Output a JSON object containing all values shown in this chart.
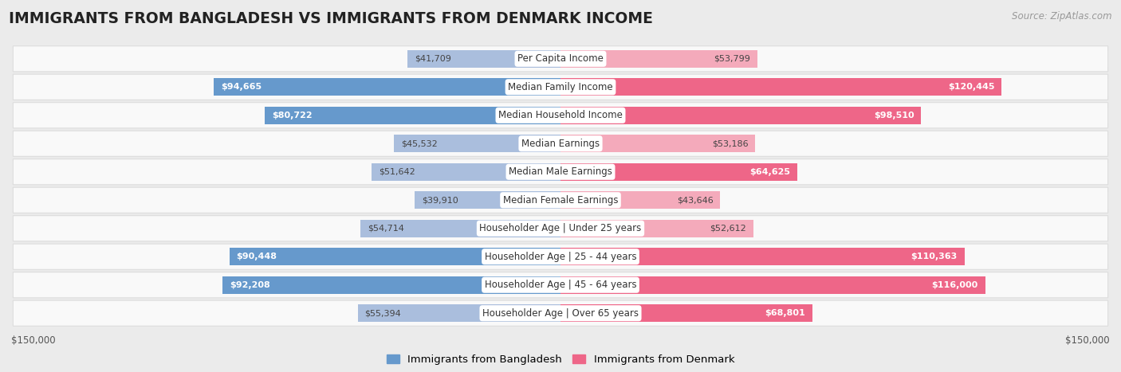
{
  "title": "IMMIGRANTS FROM BANGLADESH VS IMMIGRANTS FROM DENMARK INCOME",
  "source": "Source: ZipAtlas.com",
  "categories": [
    "Per Capita Income",
    "Median Family Income",
    "Median Household Income",
    "Median Earnings",
    "Median Male Earnings",
    "Median Female Earnings",
    "Householder Age | Under 25 years",
    "Householder Age | 25 - 44 years",
    "Householder Age | 45 - 64 years",
    "Householder Age | Over 65 years"
  ],
  "bangladesh_values": [
    41709,
    94665,
    80722,
    45532,
    51642,
    39910,
    54714,
    90448,
    92208,
    55394
  ],
  "denmark_values": [
    53799,
    120445,
    98510,
    53186,
    64625,
    43646,
    52612,
    110363,
    116000,
    68801
  ],
  "bangladesh_color_dark": "#6699CC",
  "bangladesh_color_light": "#AABEDD",
  "denmark_color_dark": "#EE6688",
  "denmark_color_light": "#F4AABB",
  "bangladesh_label": "Immigrants from Bangladesh",
  "denmark_label": "Immigrants from Denmark",
  "background_color": "#ebebeb",
  "row_bg_color": "#f9f9f9",
  "row_border_color": "#dddddd",
  "max_value": 150000,
  "title_fontsize": 13.5,
  "label_fontsize": 8.5,
  "value_fontsize": 8.0,
  "legend_fontsize": 9.5,
  "source_fontsize": 8.5,
  "white_text_threshold": 60000
}
